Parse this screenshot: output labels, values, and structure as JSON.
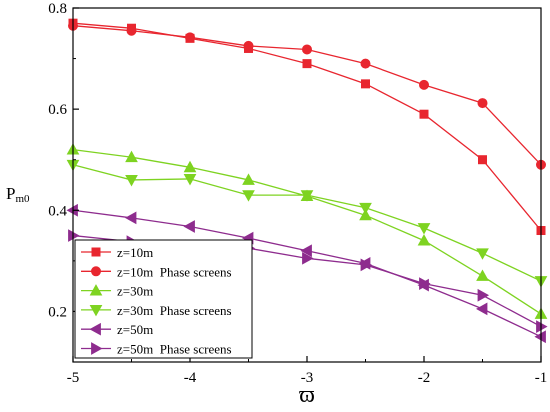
{
  "chart_data": {
    "type": "line",
    "xlabel": "ϖ",
    "ylabel": "P",
    "ylabel_subscript": "m0",
    "xlim": [
      -5,
      -1
    ],
    "ylim": [
      0.1,
      0.8
    ],
    "x_ticks": [
      -5,
      -4,
      -3,
      -2,
      -1
    ],
    "x_tick_labels": [
      "-5",
      "-4",
      "-3",
      "-2",
      "-1"
    ],
    "y_ticks": [
      0.2,
      0.4,
      0.6,
      0.8
    ],
    "y_tick_labels": [
      "0.2",
      "0.4",
      "0.6",
      "0.8"
    ],
    "grid": false,
    "legend_position": "bottom-left",
    "x": [
      -5,
      -4.5,
      -4,
      -3.5,
      -3,
      -2.5,
      -2,
      -1.5,
      -1
    ],
    "series": [
      {
        "name": "z=10m",
        "color": "#e8262f",
        "marker": "square",
        "values": [
          0.77,
          0.76,
          0.74,
          0.72,
          0.69,
          0.65,
          0.59,
          0.5,
          0.36
        ]
      },
      {
        "name": "z=10m  Phase screens",
        "color": "#e8262f",
        "marker": "circle",
        "values": [
          0.765,
          0.755,
          0.742,
          0.725,
          0.718,
          0.69,
          0.648,
          0.612,
          0.49
        ]
      },
      {
        "name": "z=30m",
        "color": "#7ed321",
        "marker": "triangle-up",
        "values": [
          0.52,
          0.505,
          0.485,
          0.46,
          0.428,
          0.39,
          0.34,
          0.27,
          0.195
        ]
      },
      {
        "name": "z=30m  Phase screens",
        "color": "#7ed321",
        "marker": "triangle-down",
        "values": [
          0.49,
          0.46,
          0.462,
          0.43,
          0.43,
          0.405,
          0.365,
          0.315,
          0.26
        ]
      },
      {
        "name": "z=50m",
        "color": "#8e2c8e",
        "marker": "triangle-left",
        "values": [
          0.4,
          0.385,
          0.368,
          0.345,
          0.32,
          0.295,
          0.252,
          0.205,
          0.15
        ]
      },
      {
        "name": "z=50m  Phase screens",
        "color": "#8e2c8e",
        "marker": "triangle-right",
        "values": [
          0.35,
          0.338,
          0.33,
          0.325,
          0.305,
          0.292,
          0.255,
          0.232,
          0.17
        ]
      }
    ]
  }
}
